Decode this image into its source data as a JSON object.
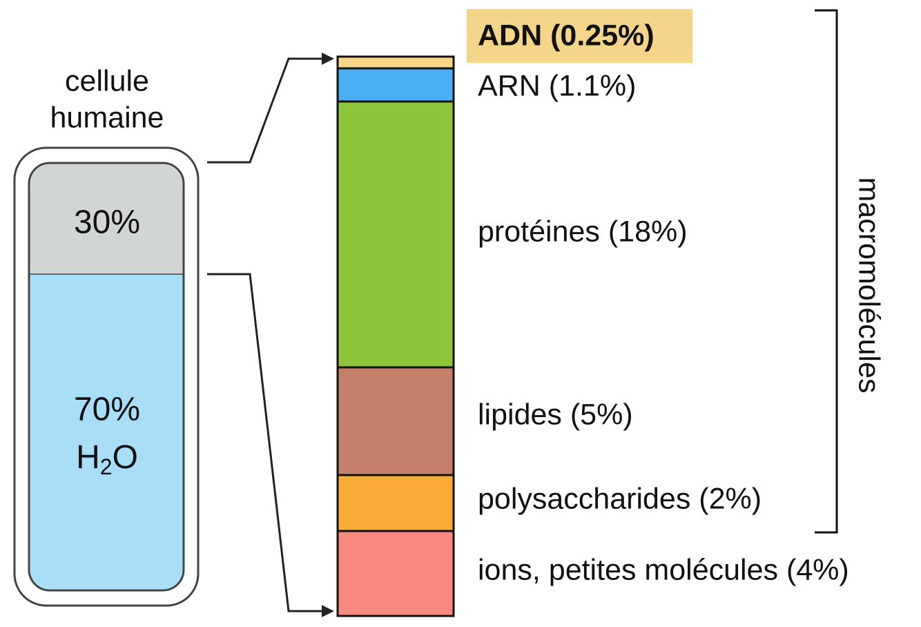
{
  "cell": {
    "label_lines": [
      "cellule",
      "humaine"
    ],
    "dry_fraction": "30%",
    "water": {
      "fraction": "70%",
      "formula": [
        "H",
        "2",
        "O"
      ]
    }
  },
  "composition": {
    "segments": [
      {
        "label": "ADN (0.25%)"
      },
      {
        "label": "ARN (1.1%)"
      },
      {
        "label": "protéines (18%)"
      },
      {
        "label": "lipides (5%)"
      },
      {
        "label": "polysaccharides (2%)"
      },
      {
        "label": "ions, petites molécules (4%)"
      }
    ]
  },
  "bracket_label": "macromolécules"
}
